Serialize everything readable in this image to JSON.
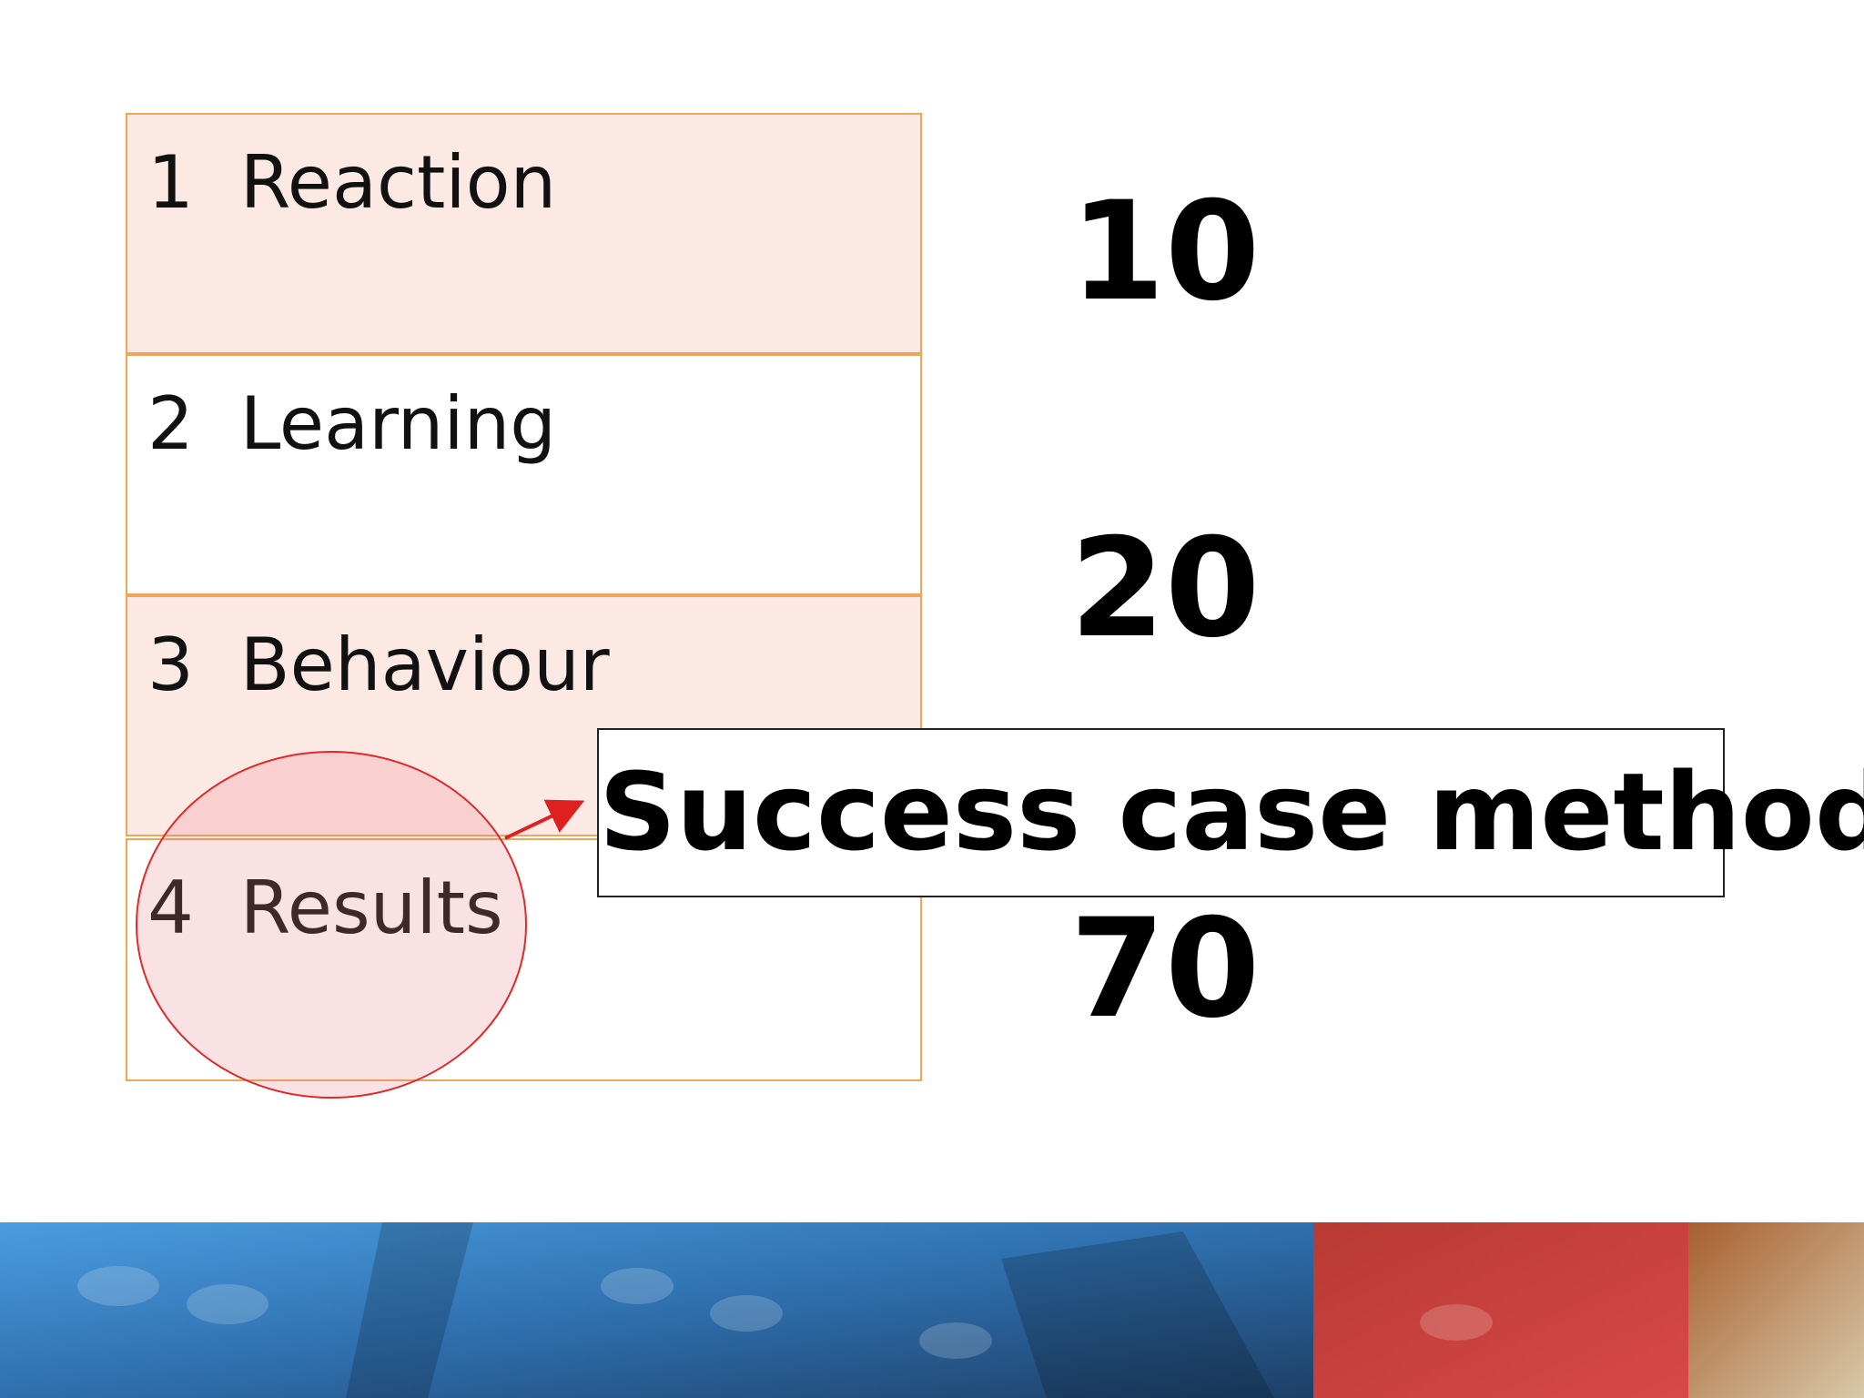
{
  "table": {
    "rows": [
      "1  Reaction",
      "2  Learning",
      "3  Behaviour",
      "4  Results"
    ]
  },
  "numbers": [
    "10",
    "20",
    "70"
  ],
  "callout": "Success case method"
}
